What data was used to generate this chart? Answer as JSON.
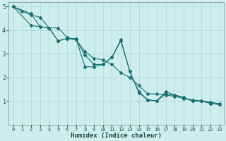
{
  "xlabel": "Humidex (Indice chaleur)",
  "bg_color": "#ceeeed",
  "grid_color": "#aed8d7",
  "line_color": "#1a7070",
  "xlim": [
    -0.5,
    23.5
  ],
  "ylim": [
    0,
    5.2
  ],
  "xticks": [
    0,
    1,
    2,
    3,
    4,
    5,
    6,
    7,
    8,
    9,
    10,
    11,
    12,
    13,
    14,
    15,
    16,
    17,
    18,
    19,
    20,
    21,
    22,
    23
  ],
  "yticks": [
    1,
    2,
    3,
    4,
    5
  ],
  "series1_x": [
    0,
    1,
    2,
    3,
    4,
    5,
    6,
    7,
    8,
    9,
    10,
    11,
    12,
    13,
    14,
    15,
    16,
    17,
    18,
    19,
    20,
    21,
    22,
    23
  ],
  "series1_y": [
    5.0,
    4.8,
    4.65,
    4.55,
    4.1,
    4.1,
    3.7,
    3.6,
    3.1,
    2.8,
    2.75,
    2.55,
    2.2,
    2.0,
    1.65,
    1.3,
    1.3,
    1.25,
    1.2,
    1.1,
    1.05,
    1.0,
    0.95,
    0.88
  ],
  "series2_x": [
    0,
    2,
    3,
    4,
    5,
    6,
    7,
    8,
    9,
    10,
    11,
    12,
    13,
    14,
    15,
    16,
    17,
    18,
    19,
    20,
    21,
    22,
    23
  ],
  "series2_y": [
    5.0,
    4.2,
    4.15,
    4.1,
    3.55,
    3.65,
    3.6,
    2.95,
    2.55,
    2.55,
    2.85,
    3.6,
    2.25,
    1.4,
    1.05,
    1.0,
    1.3,
    1.25,
    1.15,
    1.0,
    1.0,
    0.9,
    0.85
  ],
  "series3_x": [
    0,
    2,
    3,
    4,
    5,
    6,
    7,
    8,
    9,
    10,
    11,
    12,
    13,
    14,
    15,
    16,
    17,
    18,
    19,
    20,
    21,
    22,
    23
  ],
  "series3_y": [
    5.0,
    4.7,
    4.15,
    4.1,
    3.55,
    3.65,
    3.65,
    2.45,
    2.45,
    2.55,
    2.85,
    3.55,
    2.25,
    1.35,
    1.05,
    1.0,
    1.4,
    1.25,
    1.15,
    1.0,
    1.0,
    0.9,
    0.85
  ]
}
